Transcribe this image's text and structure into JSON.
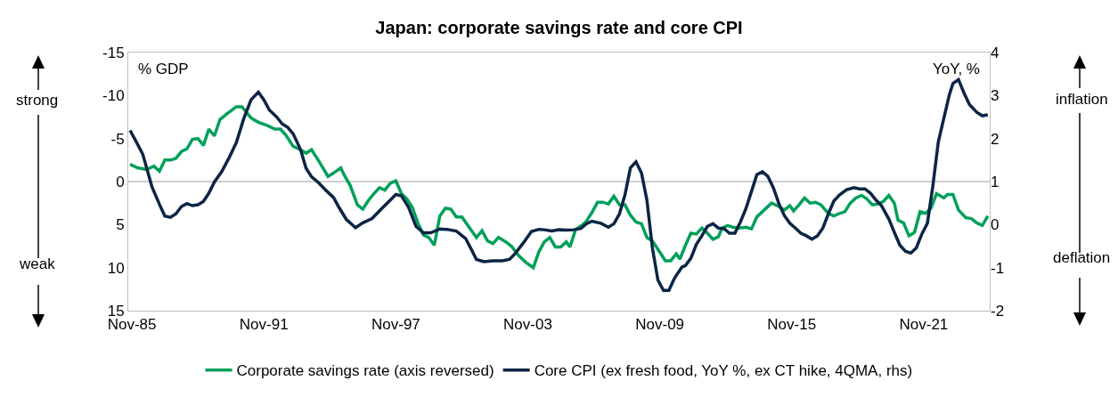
{
  "chart_data": {
    "type": "line",
    "title": "Japan: corporate savings rate and core CPI",
    "annotations": [
      "% GDP",
      "YoY, %",
      "strong",
      "weak",
      "inflation",
      "deflation"
    ],
    "xlim": [
      "1985-09",
      "2024-11"
    ],
    "xticks": [
      {
        "value": "1985-11",
        "label": "Nov-85"
      },
      {
        "value": "1991-11",
        "label": "Nov-91"
      },
      {
        "value": "1997-11",
        "label": "Nov-97"
      },
      {
        "value": "2003-11",
        "label": "Nov-03"
      },
      {
        "value": "2009-11",
        "label": "Nov-09"
      },
      {
        "value": "2015-11",
        "label": "Nov-15"
      },
      {
        "value": "2021-11",
        "label": "Nov-21"
      }
    ],
    "ylim": [
      15,
      -15
    ],
    "yticks": [
      -15,
      -10,
      -5,
      0,
      5,
      10,
      15
    ],
    "y2lim": [
      -2,
      4
    ],
    "y2ticks": [
      -2,
      -1,
      0,
      1,
      2,
      3,
      4
    ],
    "ref_lines": [
      {
        "axis": "y",
        "value": 0,
        "label": null,
        "color": "#bfbfbf"
      }
    ],
    "grid": false,
    "legend": "bottom",
    "marker": "none",
    "line_style": "solid",
    "series": [
      {
        "name": "Corporate savings rate (axis reversed)",
        "color": "#00a05a",
        "x": [
          "1985-10",
          "1986-02",
          "1986-07",
          "1986-11",
          "1987-02",
          "1987-05",
          "1987-08",
          "1987-11",
          "1988-02",
          "1988-05",
          "1988-08",
          "1988-11",
          "1989-02",
          "1989-05",
          "1989-08",
          "1989-11",
          "1990-03",
          "1990-08",
          "1990-11",
          "1991-04",
          "1991-08",
          "1992-01",
          "1992-05",
          "1992-08",
          "1992-11",
          "1993-03",
          "1993-07",
          "1993-10",
          "1994-01",
          "1994-05",
          "1994-10",
          "1995-01",
          "1995-05",
          "1995-07",
          "1995-10",
          "1996-02",
          "1996-05",
          "1996-08",
          "1996-11",
          "1997-02",
          "1997-05",
          "1997-08",
          "1997-11",
          "1998-02",
          "1998-05",
          "1998-08",
          "1998-11",
          "1999-02",
          "1999-05",
          "1999-08",
          "1999-11",
          "2000-02",
          "2000-05",
          "2000-08",
          "2000-11",
          "2001-03",
          "2001-07",
          "2001-10",
          "2002-01",
          "2002-04",
          "2002-07",
          "2002-11",
          "2003-02",
          "2003-06",
          "2003-10",
          "2004-02",
          "2004-05",
          "2004-08",
          "2004-11",
          "2005-02",
          "2005-05",
          "2005-08",
          "2005-10",
          "2006-01",
          "2006-05",
          "2006-07",
          "2006-10",
          "2007-01",
          "2007-04",
          "2007-07",
          "2007-10",
          "2008-01",
          "2008-04",
          "2008-07",
          "2008-10",
          "2009-01",
          "2009-04",
          "2009-07",
          "2009-11",
          "2010-02",
          "2010-05",
          "2010-08",
          "2010-10",
          "2011-01",
          "2011-04",
          "2011-07",
          "2011-10",
          "2012-01",
          "2012-04",
          "2012-07",
          "2012-09",
          "2012-12",
          "2013-03",
          "2013-06",
          "2013-10",
          "2014-01",
          "2014-04",
          "2014-08",
          "2014-12",
          "2015-04",
          "2015-07",
          "2015-10",
          "2015-12",
          "2016-03",
          "2016-06",
          "2016-09",
          "2016-12",
          "2017-03",
          "2017-07",
          "2017-10",
          "2018-01",
          "2018-04",
          "2018-07",
          "2018-10",
          "2019-01",
          "2019-04",
          "2019-07",
          "2019-10",
          "2020-01",
          "2020-04",
          "2020-07",
          "2020-09",
          "2020-12",
          "2021-03",
          "2021-06",
          "2021-09",
          "2021-12",
          "2022-03",
          "2022-06",
          "2022-10",
          "2022-12",
          "2023-03",
          "2023-06",
          "2023-10",
          "2024-01",
          "2024-04",
          "2024-07",
          "2024-10"
        ],
        "values": [
          -2.0,
          -1.6,
          -1.4,
          -1.8,
          -1.2,
          -2.5,
          -2.5,
          -2.7,
          -3.5,
          -3.8,
          -4.9,
          -5.0,
          -4.2,
          -6.1,
          -5.3,
          -7.2,
          -7.9,
          -8.7,
          -8.7,
          -7.4,
          -6.9,
          -6.5,
          -6.1,
          -6.1,
          -5.4,
          -4.1,
          -3.7,
          -3.3,
          -3.7,
          -2.4,
          -0.6,
          -1.0,
          -1.6,
          -0.7,
          0.4,
          2.7,
          3.2,
          2.2,
          1.4,
          0.7,
          1.0,
          0.2,
          -0.1,
          1.4,
          2.0,
          3.0,
          4.8,
          6.2,
          6.5,
          7.4,
          4.0,
          3.1,
          3.2,
          4.1,
          4.1,
          5.3,
          6.5,
          5.7,
          6.9,
          7.2,
          6.5,
          7.0,
          7.5,
          8.6,
          9.4,
          10.0,
          8.2,
          7.0,
          6.5,
          7.6,
          7.6,
          7.0,
          7.6,
          5.6,
          5.0,
          4.6,
          3.6,
          2.4,
          2.4,
          2.6,
          1.7,
          2.7,
          2.7,
          3.9,
          4.7,
          4.9,
          6.5,
          6.9,
          8.2,
          9.2,
          9.2,
          8.4,
          9.0,
          7.4,
          6.0,
          6.1,
          5.4,
          6.0,
          6.7,
          6.4,
          5.4,
          5.1,
          5.3,
          5.4,
          5.3,
          5.5,
          4.1,
          3.3,
          2.5,
          2.9,
          3.3,
          2.8,
          3.4,
          2.7,
          1.9,
          2.5,
          2.4,
          2.7,
          3.7,
          4.0,
          3.7,
          3.5,
          2.5,
          1.9,
          1.6,
          2.0,
          2.7,
          2.6,
          2.3,
          1.6,
          2.5,
          4.5,
          4.8,
          6.3,
          5.9,
          3.5,
          3.7,
          3.1,
          1.4,
          1.9,
          1.5,
          1.5,
          3.3,
          4.2,
          4.3,
          4.8,
          5.1,
          4.0
        ]
      },
      {
        "name": "Core CPI (ex fresh food, YoY %, ex CT hike, 4QMA, rhs)",
        "color": "#0b2545",
        "axis": "y2",
        "x": [
          "1985-10",
          "1986-02",
          "1986-05",
          "1986-10",
          "1987-02",
          "1987-05",
          "1987-08",
          "1987-11",
          "1988-02",
          "1988-05",
          "1988-08",
          "1988-11",
          "1989-02",
          "1989-05",
          "1989-08",
          "1989-12",
          "1990-04",
          "1990-08",
          "1990-12",
          "1991-04",
          "1991-08",
          "1991-11",
          "1992-02",
          "1992-06",
          "1992-09",
          "1992-12",
          "1993-03",
          "1993-07",
          "1993-10",
          "1994-01",
          "1994-05",
          "1994-09",
          "1995-01",
          "1995-04",
          "1995-08",
          "1996-01",
          "1996-05",
          "1996-10",
          "1997-03",
          "1997-08",
          "1997-11",
          "1998-02",
          "1998-06",
          "1998-10",
          "1999-02",
          "1999-06",
          "1999-11",
          "2000-03",
          "2000-08",
          "2001-01",
          "2001-04",
          "2001-07",
          "2001-11",
          "2002-04",
          "2002-09",
          "2003-01",
          "2003-04",
          "2003-09",
          "2004-01",
          "2004-05",
          "2004-08",
          "2004-12",
          "2005-04",
          "2005-08",
          "2005-12",
          "2006-04",
          "2006-07",
          "2006-10",
          "2007-03",
          "2007-07",
          "2007-10",
          "2008-01",
          "2008-04",
          "2008-07",
          "2008-10",
          "2009-01",
          "2009-04",
          "2009-07",
          "2009-10",
          "2010-01",
          "2010-04",
          "2010-07",
          "2010-11",
          "2011-01",
          "2011-04",
          "2011-07",
          "2011-10",
          "2012-01",
          "2012-04",
          "2012-07",
          "2012-10",
          "2013-01",
          "2013-04",
          "2013-07",
          "2013-10",
          "2014-01",
          "2014-04",
          "2014-07",
          "2014-10",
          "2015-01",
          "2015-04",
          "2015-07",
          "2015-10",
          "2016-01",
          "2016-04",
          "2016-07",
          "2016-10",
          "2017-01",
          "2017-04",
          "2017-07",
          "2017-10",
          "2018-01",
          "2018-05",
          "2018-09",
          "2018-12",
          "2019-03",
          "2019-06",
          "2019-09",
          "2019-12",
          "2020-04",
          "2020-07",
          "2020-10",
          "2021-01",
          "2021-04",
          "2021-07",
          "2021-10",
          "2022-01",
          "2022-04",
          "2022-07",
          "2022-10",
          "2023-01",
          "2023-03",
          "2023-06",
          "2023-09",
          "2023-12",
          "2024-04",
          "2024-07",
          "2024-10"
        ],
        "values": [
          2.19,
          1.87,
          1.63,
          0.87,
          0.47,
          0.2,
          0.17,
          0.25,
          0.42,
          0.49,
          0.44,
          0.46,
          0.54,
          0.73,
          0.99,
          1.23,
          1.55,
          1.91,
          2.46,
          2.9,
          3.08,
          2.9,
          2.66,
          2.5,
          2.34,
          2.26,
          2.11,
          1.75,
          1.31,
          1.11,
          0.97,
          0.79,
          0.63,
          0.4,
          0.12,
          -0.07,
          0.04,
          0.14,
          0.36,
          0.57,
          0.7,
          0.67,
          0.4,
          -0.04,
          -0.19,
          -0.19,
          -0.1,
          -0.11,
          -0.15,
          -0.32,
          -0.56,
          -0.81,
          -0.86,
          -0.84,
          -0.84,
          -0.81,
          -0.68,
          -0.4,
          -0.16,
          -0.11,
          -0.12,
          -0.15,
          -0.12,
          -0.13,
          -0.12,
          -0.09,
          0.02,
          0.08,
          0.03,
          -0.06,
          0.02,
          0.25,
          0.69,
          1.32,
          1.46,
          1.2,
          0.57,
          -0.54,
          -1.29,
          -1.53,
          -1.53,
          -1.25,
          -0.99,
          -0.95,
          -0.78,
          -0.46,
          -0.26,
          -0.04,
          0.02,
          -0.08,
          -0.09,
          -0.2,
          -0.2,
          0.06,
          0.37,
          0.77,
          1.16,
          1.23,
          1.12,
          0.85,
          0.49,
          0.21,
          0.03,
          -0.08,
          -0.2,
          -0.26,
          -0.34,
          -0.26,
          -0.08,
          0.25,
          0.55,
          0.69,
          0.81,
          0.86,
          0.83,
          0.83,
          0.73,
          0.57,
          0.44,
          0.13,
          -0.18,
          -0.48,
          -0.62,
          -0.66,
          -0.54,
          -0.22,
          0.03,
          0.89,
          1.92,
          2.47,
          3.02,
          3.28,
          3.37,
          3.06,
          2.79,
          2.61,
          2.53,
          2.55
        ]
      }
    ]
  }
}
